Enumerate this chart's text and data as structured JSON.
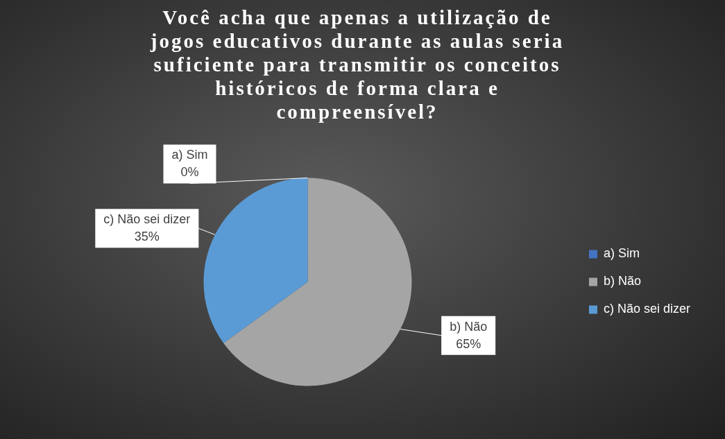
{
  "chart_data": {
    "type": "pie",
    "title": "Você acha que apenas a utilização de jogos educativos durante as aulas seria suficiente para transmitir os conceitos históricos de forma clara e compreensível?",
    "categories": [
      "a) Sim",
      "b) Não",
      "c) Não sei dizer"
    ],
    "values": [
      0,
      65,
      35
    ],
    "value_labels": [
      "0%",
      "65%",
      "35%"
    ],
    "colors": [
      "#4472c4",
      "#a5a5a5",
      "#5b9bd5"
    ],
    "legend": "right"
  }
}
